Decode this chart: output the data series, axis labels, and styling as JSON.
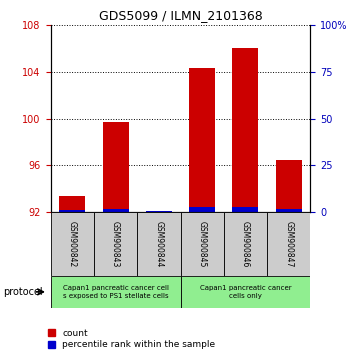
{
  "title": "GDS5099 / ILMN_2101368",
  "samples": [
    "GSM900842",
    "GSM900843",
    "GSM900844",
    "GSM900845",
    "GSM900846",
    "GSM900847"
  ],
  "count_values": [
    93.4,
    99.7,
    92.0,
    104.3,
    106.0,
    96.5
  ],
  "percentile_values": [
    1.5,
    2.0,
    0.5,
    3.0,
    3.0,
    2.0
  ],
  "base": 92,
  "ylim_left": [
    92,
    108
  ],
  "ylim_right": [
    0,
    100
  ],
  "yticks_left": [
    92,
    96,
    100,
    104,
    108
  ],
  "yticks_right": [
    0,
    25,
    50,
    75,
    100
  ],
  "ytick_labels_right": [
    "0",
    "25",
    "50",
    "75",
    "100%"
  ],
  "bar_color_red": "#cc0000",
  "bar_color_blue": "#0000cc",
  "bar_width": 0.6,
  "protocol_label": "protocol",
  "protocol_text_1": "Capan1 pancreatic cancer cell\ns exposed to PS1 stellate cells",
  "protocol_text_2": "Capan1 pancreatic cancer\ncells only",
  "protocol_color": "#90EE90",
  "sample_box_color": "#cccccc",
  "legend_items": [
    {
      "color": "#cc0000",
      "label": "count"
    },
    {
      "color": "#0000cc",
      "label": "percentile rank within the sample"
    }
  ],
  "grid_color": "#000000",
  "tick_color_left": "#cc0000",
  "tick_color_right": "#0000bb",
  "title_fontsize": 9,
  "tick_fontsize": 7,
  "sample_fontsize": 5.5,
  "protocol_fontsize": 5,
  "legend_fontsize": 6.5
}
